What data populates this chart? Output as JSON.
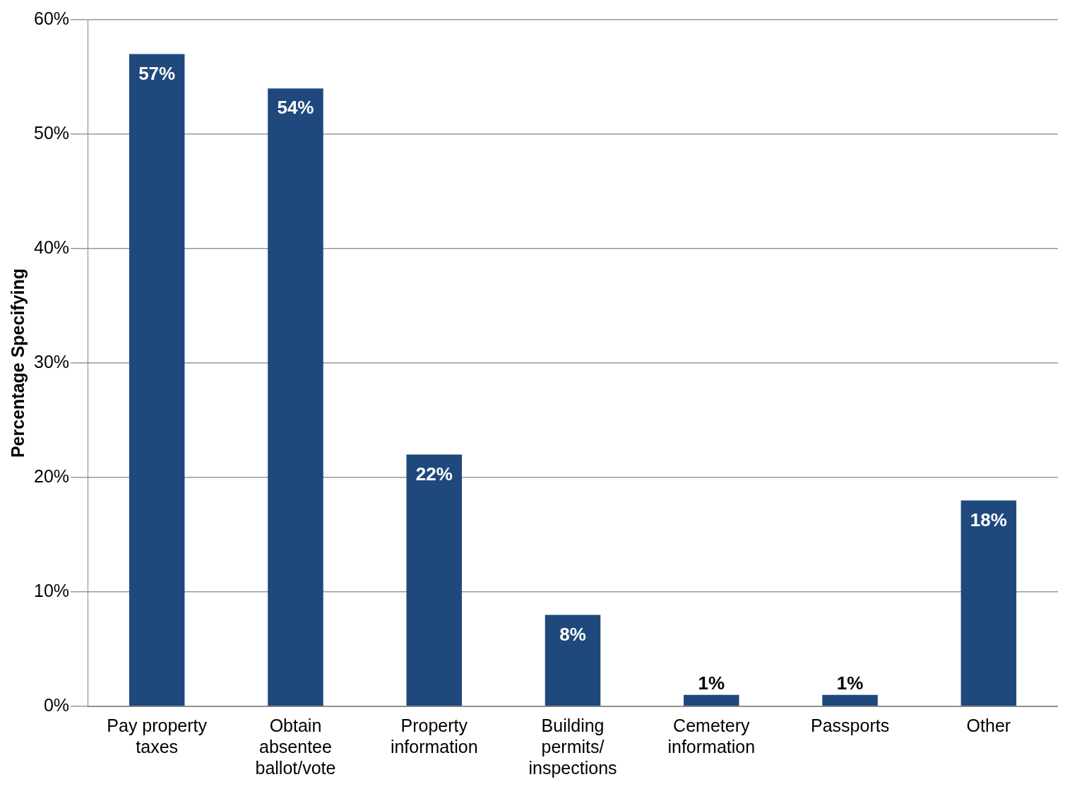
{
  "chart_data": {
    "type": "bar",
    "ylabel": "Percentage Specifying",
    "categories": [
      "Pay property taxes",
      "Obtain absentee ballot/vote",
      "Property information",
      "Building permits/ inspections",
      "Cemetery information",
      "Passports",
      "Other"
    ],
    "values": [
      57,
      54,
      22,
      8,
      1,
      1,
      18
    ],
    "value_labels": [
      "57%",
      "54%",
      "22%",
      "8%",
      "1%",
      "1%",
      "18%"
    ],
    "color": "#1f497d",
    "ylim": [
      0,
      60
    ],
    "yticks": [
      {
        "value": 0,
        "label": "0%"
      },
      {
        "value": 10,
        "label": "10%"
      },
      {
        "value": 20,
        "label": "20%"
      },
      {
        "value": 30,
        "label": "30%"
      },
      {
        "value": 40,
        "label": "40%"
      },
      {
        "value": 50,
        "label": "50%"
      },
      {
        "value": 60,
        "label": "60%"
      }
    ],
    "grid": "y",
    "legend": false
  }
}
